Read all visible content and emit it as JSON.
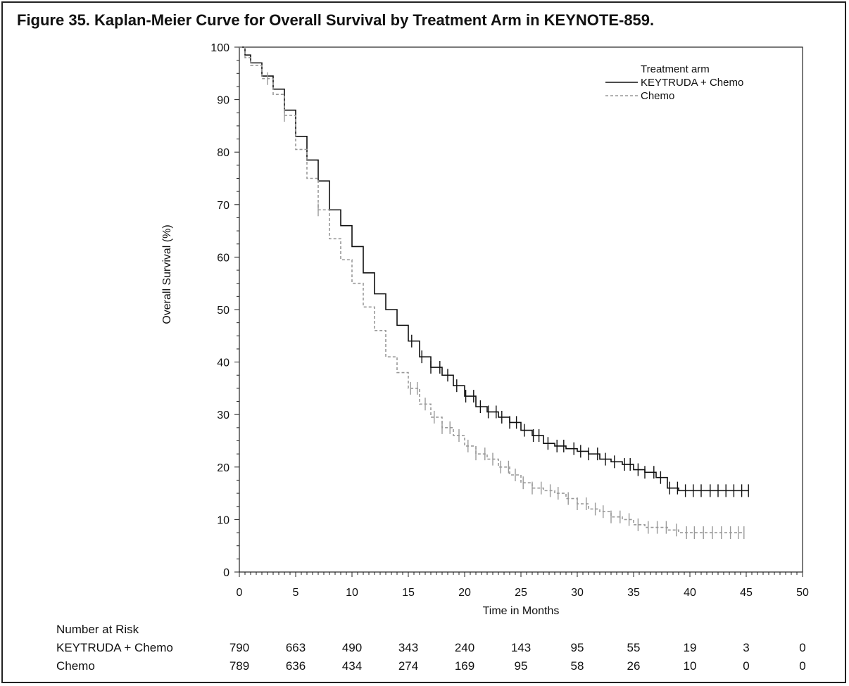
{
  "chart_data": {
    "type": "line",
    "title": "Figure 35. Kaplan-Meier Curve for Overall Survival by Treatment Arm in KEYNOTE-859.",
    "xlabel": "Time in Months",
    "ylabel": "Overall Survival (%)",
    "xlim": [
      0,
      50
    ],
    "ylim": [
      0,
      100
    ],
    "x_ticks": [
      0,
      5,
      10,
      15,
      20,
      25,
      30,
      35,
      40,
      45,
      50
    ],
    "y_ticks": [
      0,
      10,
      20,
      30,
      40,
      50,
      60,
      70,
      80,
      90,
      100
    ],
    "grid": false,
    "legend": {
      "title": "Treatment arm",
      "placement": "top-right",
      "entries": [
        "KEYTRUDA + Chemo",
        "Chemo"
      ]
    },
    "series": [
      {
        "name": "KEYTRUDA + Chemo",
        "color": "#111111",
        "style": "solid",
        "x": [
          0,
          0.5,
          1,
          2,
          3,
          4,
          5,
          6,
          7,
          8,
          9,
          10,
          11,
          12,
          13,
          14,
          15,
          16,
          17,
          18,
          19,
          20,
          21,
          22,
          23,
          24,
          25,
          26,
          27,
          28,
          29,
          30,
          31,
          32,
          33,
          34,
          35,
          36,
          37,
          38,
          39,
          40,
          42,
          44,
          45.2
        ],
        "y": [
          100,
          98.5,
          97,
          94.5,
          92,
          88,
          83,
          78.5,
          74.5,
          69,
          66,
          62,
          57,
          53,
          50,
          47,
          44,
          41,
          39,
          37.5,
          35.5,
          33.5,
          31.5,
          30.5,
          29.5,
          28.5,
          27,
          26,
          24.5,
          24,
          23.5,
          23,
          22.5,
          21.5,
          21,
          20.5,
          19.5,
          19,
          18,
          16,
          15.5,
          15.5,
          15.5,
          15.5,
          15.5
        ],
        "censor_x": [
          15.3,
          16.2,
          17,
          17.8,
          18.5,
          19.3,
          20.1,
          20.8,
          21.4,
          22.1,
          22.8,
          23.3,
          24,
          24.6,
          25.3,
          26.1,
          26.6,
          27.4,
          28.2,
          28.8,
          29.7,
          30.3,
          31,
          31.8,
          32.5,
          33.3,
          34.2,
          34.7,
          35.4,
          36,
          36.8,
          37.4,
          38.2,
          38.9,
          39.6,
          40.3,
          41,
          41.8,
          42.5,
          43.2,
          43.9,
          44.6,
          45.2
        ]
      },
      {
        "name": "Chemo",
        "color": "#999999",
        "style": "dashed",
        "x": [
          0,
          0.5,
          1,
          2,
          3,
          4,
          5,
          6,
          7,
          8,
          9,
          10,
          11,
          12,
          13,
          14,
          15,
          16,
          17,
          18,
          19,
          20,
          21,
          22,
          23,
          24,
          25,
          26,
          27,
          28,
          29,
          30,
          31,
          32,
          33,
          34,
          35,
          36,
          37,
          38,
          39,
          40,
          41,
          42,
          43,
          44,
          44.8
        ],
        "y": [
          100,
          98,
          96.5,
          94,
          91,
          87,
          80.5,
          75,
          69,
          63.5,
          59.5,
          55,
          50.5,
          46,
          41,
          38,
          35,
          32,
          29.5,
          27.5,
          26,
          24,
          22.5,
          21.5,
          20,
          18.5,
          17,
          16,
          15.5,
          15,
          14,
          13,
          12,
          11.5,
          10.5,
          10,
          9,
          8.5,
          8.5,
          8,
          7.5,
          7.5,
          7.5,
          7.5,
          7.5,
          7.5,
          7.5
        ],
        "censor_x": [
          2.5,
          4,
          7,
          15.2,
          15.8,
          16.5,
          17.3,
          18,
          18.7,
          19.5,
          20.3,
          21,
          21.8,
          22.5,
          23.2,
          23.9,
          24.5,
          25.2,
          26,
          26.8,
          27.6,
          28.3,
          29.2,
          30,
          30.8,
          31.6,
          32.3,
          33,
          33.8,
          34.6,
          35.4,
          36.3,
          37.1,
          37.9,
          38.8,
          39.7,
          40.4,
          41.2,
          42,
          42.8,
          43.6,
          44.3,
          44.8
        ]
      }
    ],
    "risk_table": {
      "header": "Number at Risk",
      "time_points": [
        0,
        5,
        10,
        15,
        20,
        25,
        30,
        35,
        40,
        45,
        50
      ],
      "rows": [
        {
          "label": "KEYTRUDA + Chemo",
          "counts": [
            "790",
            "663",
            "490",
            "343",
            "240",
            "143",
            "95",
            "55",
            "19",
            "3",
            "0"
          ]
        },
        {
          "label": "Chemo",
          "counts": [
            "789",
            "636",
            "434",
            "274",
            "169",
            "95",
            "58",
            "26",
            "10",
            "0",
            "0"
          ]
        }
      ]
    }
  }
}
